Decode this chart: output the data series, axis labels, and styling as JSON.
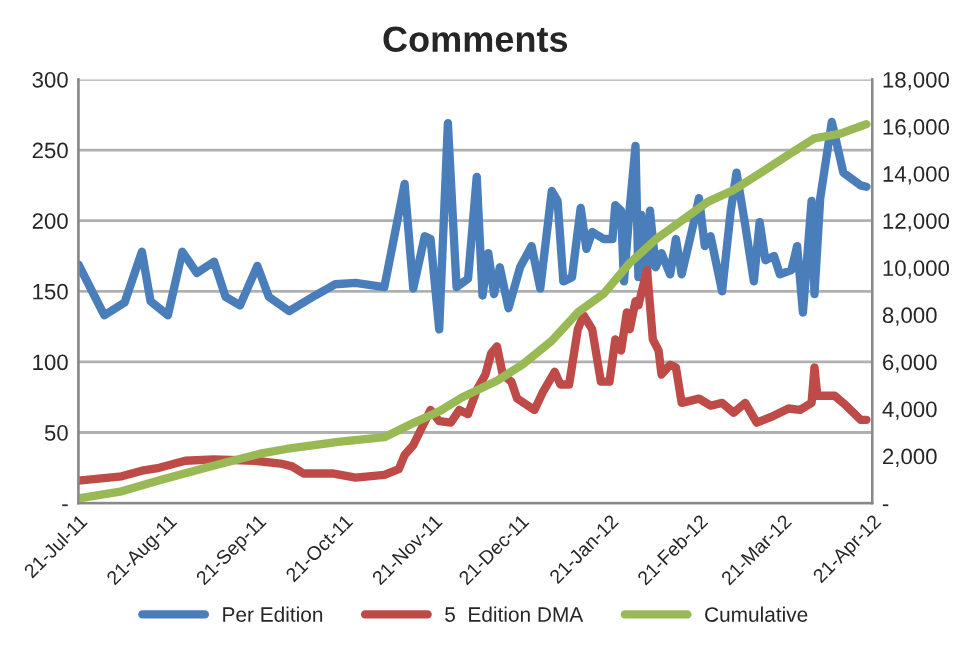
{
  "chart_data": {
    "type": "line",
    "title": "Comments",
    "legend": "bottom",
    "grid": "y",
    "line_style": "solid",
    "marker": "none",
    "xlim": [
      "2011-07-21",
      "2012-04-21"
    ],
    "xticks": [
      {
        "value": "2011-07-21",
        "label": "21-Jul-11"
      },
      {
        "value": "2011-08-21",
        "label": "21-Aug-11"
      },
      {
        "value": "2011-09-21",
        "label": "21-Sep-11"
      },
      {
        "value": "2011-10-21",
        "label": "21-Oct-11"
      },
      {
        "value": "2011-11-21",
        "label": "21-Nov-11"
      },
      {
        "value": "2011-12-21",
        "label": "21-Dec-11"
      },
      {
        "value": "2012-01-21",
        "label": "21-Jan-12"
      },
      {
        "value": "2012-02-21",
        "label": "21-Feb-12"
      },
      {
        "value": "2012-03-21",
        "label": "21-Mar-12"
      },
      {
        "value": "2012-04-21",
        "label": "21-Apr-12"
      }
    ],
    "ylim": [
      0,
      300
    ],
    "yticks": [
      {
        "value": 0,
        "label": "-"
      },
      50,
      100,
      150,
      200,
      250,
      300
    ],
    "y2lim": [
      0,
      18000
    ],
    "y2ticks": [
      {
        "value": 0,
        "label": "-"
      },
      {
        "value": 2000,
        "label": "2,000"
      },
      {
        "value": 4000,
        "label": "4,000"
      },
      {
        "value": 6000,
        "label": "6,000"
      },
      {
        "value": 8000,
        "label": "8,000"
      },
      {
        "value": 10000,
        "label": "10,000"
      },
      {
        "value": 12000,
        "label": "12,000"
      },
      {
        "value": 14000,
        "label": "14,000"
      },
      {
        "value": 16000,
        "label": "16,000"
      },
      {
        "value": 18000,
        "label": "18,000"
      }
    ],
    "series": [
      {
        "name": "Per Edition",
        "color": "#4a7ebb",
        "x": [
          "2011-07-21",
          "2011-07-30",
          "2011-08-06",
          "2011-08-12",
          "2011-08-15",
          "2011-08-21",
          "2011-08-26",
          "2011-08-31",
          "2011-09-06",
          "2011-09-10",
          "2011-09-15",
          "2011-09-21",
          "2011-09-25",
          "2011-10-02",
          "2011-10-11",
          "2011-10-18",
          "2011-10-25",
          "2011-11-04",
          "2011-11-11",
          "2011-11-14",
          "2011-11-18",
          "2011-11-20",
          "2011-11-23",
          "2011-11-26",
          "2011-11-29",
          "2011-12-03",
          "2011-12-06",
          "2011-12-08",
          "2011-12-10",
          "2011-12-12",
          "2011-12-14",
          "2011-12-17",
          "2011-12-21",
          "2011-12-25",
          "2011-12-28",
          "2012-01-01",
          "2012-01-03",
          "2012-01-05",
          "2012-01-08",
          "2012-01-11",
          "2012-01-13",
          "2012-01-15",
          "2012-01-19",
          "2012-01-22",
          "2012-01-23",
          "2012-01-25",
          "2012-01-26",
          "2012-01-28",
          "2012-01-30",
          "2012-01-31",
          "2012-02-01",
          "2012-02-03",
          "2012-02-04",
          "2012-02-06",
          "2012-02-08",
          "2012-02-11",
          "2012-02-13",
          "2012-02-15",
          "2012-02-19",
          "2012-02-21",
          "2012-02-23",
          "2012-02-25",
          "2012-02-29",
          "2012-03-03",
          "2012-03-05",
          "2012-03-08",
          "2012-03-11",
          "2012-03-13",
          "2012-03-15",
          "2012-03-18",
          "2012-03-20",
          "2012-03-24",
          "2012-03-26",
          "2012-03-28",
          "2012-03-31",
          "2012-04-01",
          "2012-04-03",
          "2012-04-07",
          "2012-04-11",
          "2012-04-17",
          "2012-04-19"
        ],
        "values": [
          169,
          133,
          142,
          178,
          143,
          133,
          178,
          163,
          171,
          146,
          140,
          168,
          146,
          136,
          147,
          155,
          156,
          153,
          226,
          152,
          189,
          187,
          123,
          269,
          153,
          159,
          231,
          147,
          177,
          148,
          167,
          138,
          167,
          182,
          152,
          221,
          214,
          157,
          160,
          209,
          180,
          192,
          187,
          187,
          211,
          207,
          157,
          209,
          253,
          160,
          204,
          162,
          207,
          167,
          177,
          162,
          187,
          162,
          197,
          216,
          182,
          189,
          150,
          207,
          234,
          197,
          157,
          199,
          172,
          175,
          162,
          165,
          182,
          135,
          214,
          148,
          216,
          270,
          234,
          225,
          224
        ]
      },
      {
        "name": "5  Edition DMA",
        "color": "#be4b48",
        "x": [
          "2011-07-21",
          "2011-08-05",
          "2011-08-12",
          "2011-08-18",
          "2011-08-27",
          "2011-09-06",
          "2011-09-20",
          "2011-09-29",
          "2011-10-03",
          "2011-10-07",
          "2011-10-17",
          "2011-10-25",
          "2011-11-04",
          "2011-11-09",
          "2011-11-11",
          "2011-11-14",
          "2011-11-20",
          "2011-11-23",
          "2011-11-27",
          "2011-11-30",
          "2011-12-03",
          "2011-12-06",
          "2011-12-09",
          "2011-12-11",
          "2011-12-13",
          "2011-12-15",
          "2011-12-18",
          "2011-12-20",
          "2011-12-26",
          "2011-12-29",
          "2012-01-02",
          "2012-01-04",
          "2012-01-07",
          "2012-01-10",
          "2012-01-12",
          "2012-01-15",
          "2012-01-18",
          "2012-01-21",
          "2012-01-23",
          "2012-01-25",
          "2012-01-27",
          "2012-01-28",
          "2012-01-30",
          "2012-01-31",
          "2012-02-02",
          "2012-02-03",
          "2012-02-05",
          "2012-02-07",
          "2012-02-08",
          "2012-02-11",
          "2012-02-13",
          "2012-02-15",
          "2012-02-21",
          "2012-02-25",
          "2012-02-29",
          "2012-03-04",
          "2012-03-08",
          "2012-03-12",
          "2012-03-17",
          "2012-03-23",
          "2012-03-27",
          "2012-03-31",
          "2012-04-01",
          "2012-04-02",
          "2012-04-08",
          "2012-04-12",
          "2012-04-17",
          "2012-04-19"
        ],
        "values": [
          16,
          19,
          23,
          25,
          30,
          31,
          30,
          28,
          26,
          21,
          21,
          18,
          20,
          24,
          34,
          41,
          66,
          58,
          57,
          66,
          63,
          80,
          91,
          106,
          111,
          91,
          86,
          74,
          66,
          79,
          93,
          84,
          84,
          123,
          133,
          123,
          86,
          86,
          116,
          108,
          135,
          123,
          143,
          140,
          157,
          165,
          116,
          108,
          91,
          98,
          96,
          71,
          74,
          69,
          71,
          64,
          71,
          57,
          61,
          67,
          66,
          71,
          96,
          76,
          76,
          69,
          59,
          59
        ]
      },
      {
        "name": "Cumulative",
        "color": "#98b954",
        "axis": "y2",
        "x": [
          "2011-07-21",
          "2011-08-05",
          "2011-08-19",
          "2011-09-06",
          "2011-09-22",
          "2011-10-01",
          "2011-10-19",
          "2011-11-04",
          "2011-11-14",
          "2011-11-23",
          "2011-12-01",
          "2011-12-13",
          "2011-12-22",
          "2012-01-01",
          "2012-01-10",
          "2012-01-19",
          "2012-01-28",
          "2012-02-06",
          "2012-02-15",
          "2012-02-24",
          "2012-03-04",
          "2012-03-13",
          "2012-03-23",
          "2012-04-01",
          "2012-04-10",
          "2012-04-19"
        ],
        "values": [
          200,
          500,
          1000,
          1600,
          2100,
          2300,
          2600,
          2800,
          3400,
          3900,
          4500,
          5200,
          5900,
          6900,
          8100,
          8900,
          10200,
          11200,
          12000,
          12800,
          13300,
          14000,
          14800,
          15500,
          15700,
          16100
        ]
      }
    ]
  }
}
